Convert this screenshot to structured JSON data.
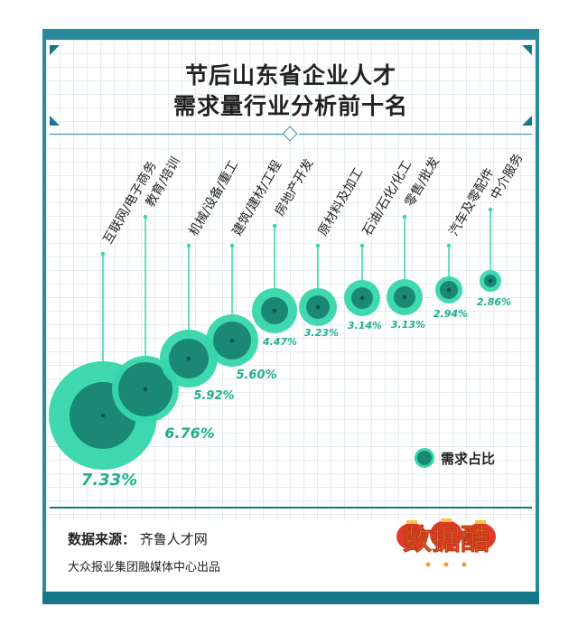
{
  "title": {
    "line1": "节后山东省企业人才",
    "line2": "需求量行业分析前十名"
  },
  "colors": {
    "outer_ring": "#35d6ab",
    "inner_circle": "#1a8873",
    "pct_text": "#1fae8c",
    "frame": "#16768a"
  },
  "legend": {
    "label": "需求占比"
  },
  "source": {
    "label": "数据来源：",
    "value": "齐鲁人才网"
  },
  "publisher": "大众报业集团融媒体中心出品",
  "logo": {
    "text": "数据酷",
    "icon": "lantern-logo-icon"
  },
  "chart_data": {
    "type": "bubble",
    "title": "节后山东省企业人才需求量行业分析前十名",
    "categories": [
      "互联网/电子商务",
      "教育/培训",
      "机械/设备/重工",
      "建筑/建材/工程",
      "房地产开发",
      "原材料及加工",
      "石油/石化/化工",
      "零售/批发",
      "汽车及零配件",
      "中介服务"
    ],
    "values": [
      7.33,
      6.76,
      5.92,
      5.6,
      4.47,
      3.23,
      3.14,
      3.13,
      2.94,
      2.86
    ],
    "value_labels": [
      "7.33%",
      "6.76%",
      "5.92%",
      "5.60%",
      "4.47%",
      "3.23%",
      "3.14%",
      "3.13%",
      "2.94%",
      "2.86%"
    ],
    "unit": "%",
    "legend": "需求占比",
    "legend_position": "right"
  }
}
